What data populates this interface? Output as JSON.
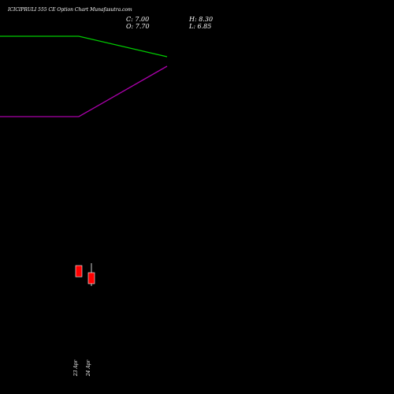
{
  "chart_data": {
    "type": "candlestick",
    "title": "ICICIPRULI 555 CE Option Chart Munafasutra.com",
    "ohlc_readout": {
      "close_label": "C: 7.00",
      "open_label": "O: 7.70",
      "high_label": "H: 8.30",
      "low_label": "L: 6.85"
    },
    "candles": [
      {
        "date": "23 Apr",
        "open": 8.15,
        "high": 8.15,
        "low": 7.44,
        "close": 7.44,
        "color": "#ff0000"
      },
      {
        "date": "24 Apr",
        "open": 7.7,
        "high": 8.3,
        "low": 6.85,
        "close": 7.0,
        "color": "#ff0000"
      }
    ],
    "upper_line": {
      "color": "#00cc00",
      "points": [
        {
          "x": "23 Apr",
          "y": 22.7
        },
        {
          "x": "30 Apr",
          "y": 21.4
        }
      ]
    },
    "lower_line": {
      "color": "#aa00aa",
      "points": [
        {
          "x": "23 Apr",
          "y": 17.6
        },
        {
          "x": "30 Apr",
          "y": 20.8
        }
      ]
    },
    "xlabels": [
      "23 Apr",
      "24 Apr"
    ],
    "ylim": [
      0,
      25
    ],
    "grid": false,
    "background": "#000000",
    "text_color": "#ffffff"
  }
}
